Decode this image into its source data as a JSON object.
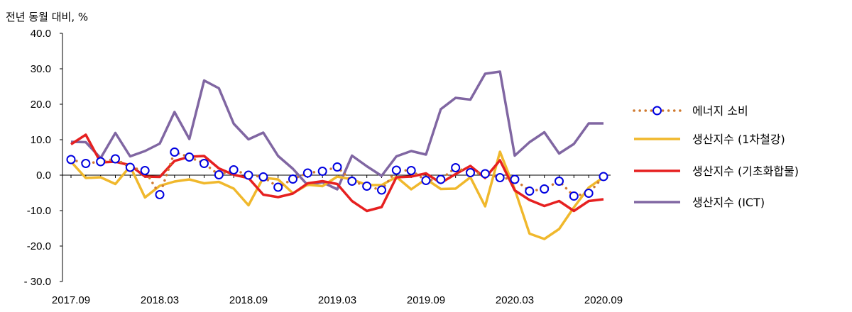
{
  "chart_data": {
    "type": "line",
    "ylabel": "전년 동월 대비, %",
    "ylim": [
      -30,
      40
    ],
    "ytick_values": [
      40,
      30,
      20,
      10,
      0,
      -10,
      -20,
      -30
    ],
    "ytick_labels": [
      "40.0",
      "30.0",
      "20.0",
      "10.0",
      "0.0",
      "-10.0",
      "-20.0",
      "- 30.0"
    ],
    "xtick_labels": [
      "2017.09",
      "2018.03",
      "2018.09",
      "2019.03",
      "2019.09",
      "2020.03",
      "2020.09"
    ],
    "x": [
      "2017.09",
      "2017.10",
      "2017.11",
      "2017.12",
      "2018.01",
      "2018.02",
      "2018.03",
      "2018.04",
      "2018.05",
      "2018.06",
      "2018.07",
      "2018.08",
      "2018.09",
      "2018.10",
      "2018.11",
      "2018.12",
      "2019.01",
      "2019.02",
      "2019.03",
      "2019.04",
      "2019.05",
      "2019.06",
      "2019.07",
      "2019.08",
      "2019.09",
      "2019.10",
      "2019.11",
      "2019.12",
      "2020.01",
      "2020.02",
      "2020.03",
      "2020.04",
      "2020.05",
      "2020.06",
      "2020.07",
      "2020.08",
      "2020.09"
    ],
    "legend_position": "right",
    "series": [
      {
        "name": "에너지 소비",
        "style": "dotted-markers",
        "color": "#d07a30",
        "marker_color": "#0000e0",
        "values": [
          4.4,
          3.3,
          3.8,
          4.6,
          2.2,
          1.3,
          -5.5,
          6.5,
          5.1,
          3.3,
          0.1,
          1.5,
          0.0,
          -0.5,
          -3.4,
          -1.1,
          0.6,
          1.1,
          2.3,
          -1.7,
          -3.1,
          -4.2,
          1.4,
          1.3,
          -1.5,
          -1.2,
          2.1,
          0.7,
          0.4,
          -0.7,
          -1.2,
          -4.5,
          -3.9,
          -1.7,
          -5.9,
          -5.1,
          -0.4
        ]
      },
      {
        "name": "생산지수 (1차철강)",
        "style": "line",
        "color": "#f0b82c",
        "values": [
          3.8,
          -0.8,
          -0.6,
          -2.5,
          2.5,
          -6.3,
          -3.0,
          -1.8,
          -1.2,
          -2.3,
          -1.9,
          -3.8,
          -8.5,
          -0.7,
          -1.2,
          -5.1,
          -2.7,
          -3.1,
          -0.4,
          -1.2,
          -2.8,
          -2.8,
          -0.5,
          -4.0,
          -1.1,
          -3.9,
          -3.8,
          -0.6,
          -8.8,
          6.6,
          -4.0,
          -16.5,
          -18.0,
          -15.2,
          -9.1,
          -3.5,
          -0.6
        ]
      },
      {
        "name": "생산지수 (기초화합물)",
        "style": "line",
        "color": "#e62020",
        "values": [
          8.7,
          11.4,
          3.6,
          3.8,
          2.8,
          -0.4,
          -0.5,
          4.0,
          5.2,
          5.4,
          1.9,
          0.1,
          -0.8,
          -5.5,
          -6.2,
          -5.2,
          -2.3,
          -1.7,
          -2.5,
          -7.3,
          -10.1,
          -9.0,
          -0.6,
          -0.4,
          0.5,
          -2.2,
          0.3,
          2.6,
          -0.8,
          4.2,
          -4.3,
          -7.0,
          -8.7,
          -7.3,
          -10.1,
          -7.3,
          -6.8
        ]
      },
      {
        "name": "생산지수 (ICT)",
        "style": "line",
        "color": "#8066a2",
        "values": [
          9.4,
          9.3,
          4.8,
          11.9,
          5.3,
          6.8,
          8.9,
          17.8,
          10.2,
          26.7,
          24.5,
          14.5,
          10.1,
          12.0,
          5.4,
          1.8,
          -2.8,
          -2.0,
          -4.0,
          5.5,
          2.5,
          -0.2,
          5.3,
          6.8,
          5.8,
          18.6,
          21.8,
          21.3,
          28.6,
          29.2,
          5.5,
          9.3,
          12.1,
          6.1,
          8.8,
          14.6,
          14.6
        ]
      }
    ]
  }
}
